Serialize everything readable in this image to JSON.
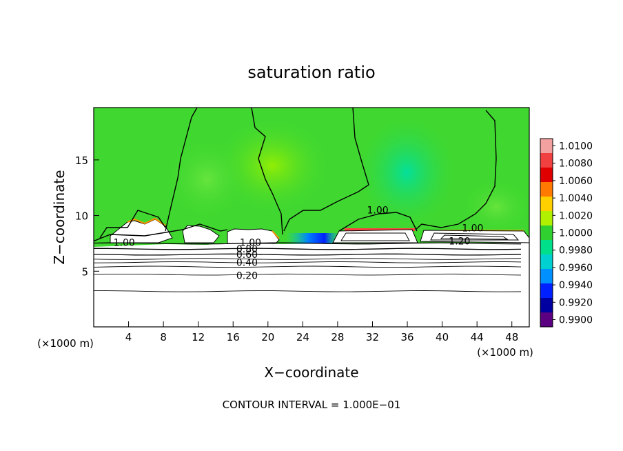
{
  "chart_data": {
    "type": "heatmap",
    "title": "saturation ratio",
    "xlabel": "X−coordinate",
    "ylabel": "Z−coordinate",
    "x_unit_label": "(×1000 m)",
    "y_unit_label": "(×1000 m)",
    "xlim": [
      0,
      50
    ],
    "ylim": [
      0,
      19.7
    ],
    "x_ticks": [
      4,
      8,
      12,
      16,
      20,
      24,
      28,
      32,
      36,
      40,
      44,
      48
    ],
    "y_ticks": [
      5,
      10,
      15
    ],
    "footer": "CONTOUR INTERVAL = 1.000E−01",
    "colorbar": {
      "labels": [
        "1.0100",
        "1.0080",
        "1.0060",
        "1.0040",
        "1.0020",
        "1.0000",
        "0.9980",
        "0.9960",
        "0.9940",
        "0.9920",
        "0.9900"
      ],
      "colors": [
        "#f3a0a0",
        "#f04040",
        "#e00000",
        "#ff7a00",
        "#ffd000",
        "#b0f000",
        "#30d030",
        "#00e08a",
        "#00d0d0",
        "#0090ff",
        "#0020ff",
        "#0000a0",
        "#5a0080"
      ]
    },
    "contour_labels": [
      {
        "text": "1.00",
        "x": 3.5,
        "z": 7.6
      },
      {
        "text": "1.00",
        "x": 32.6,
        "z": 10.5
      },
      {
        "text": "1.00",
        "x": 43.5,
        "z": 8.9
      },
      {
        "text": "1.20",
        "x": 42.0,
        "z": 7.7
      },
      {
        "text": "1.00",
        "x": 18.0,
        "z": 7.6
      },
      {
        "text": "0.80",
        "x": 17.6,
        "z": 7.0
      },
      {
        "text": "0.60",
        "x": 17.6,
        "z": 6.5
      },
      {
        "text": "0.40",
        "x": 17.6,
        "z": 5.8
      },
      {
        "text": "0.20",
        "x": 17.6,
        "z": 4.6
      }
    ],
    "stratified_contours_z": [
      7.5,
      7.0,
      6.5,
      6.1,
      5.8,
      5.4,
      4.7,
      3.2
    ]
  }
}
